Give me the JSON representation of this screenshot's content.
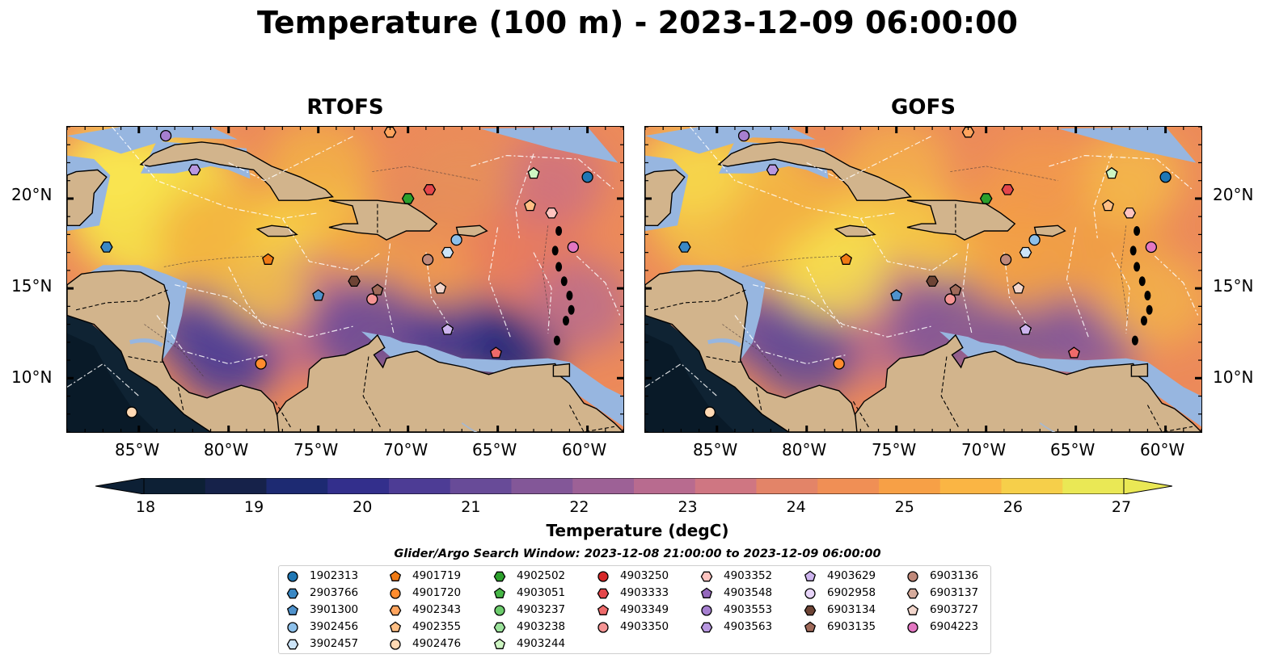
{
  "title": "Temperature (100 m) - 2023-12-09 06:00:00",
  "panels": [
    {
      "title": "RTOFS"
    },
    {
      "title": "GOFS"
    }
  ],
  "lat_ticks": [
    "20°N",
    "15°N",
    "10°N"
  ],
  "lon_ticks": [
    "85°W",
    "80°W",
    "75°W",
    "70°W",
    "65°W",
    "60°W"
  ],
  "colorbar": {
    "label": "Temperature (degC)",
    "ticks": [
      "18",
      "19",
      "20",
      "21",
      "22",
      "23",
      "24",
      "25",
      "26",
      "27"
    ],
    "range": [
      18,
      27
    ],
    "colors": [
      "#0d2035",
      "#16224a",
      "#1d2a72",
      "#332f8c",
      "#4d3c95",
      "#684b98",
      "#835798",
      "#9d6196",
      "#b86b8f",
      "#cf7682",
      "#e38468",
      "#f08f55",
      "#f7a046",
      "#fab544",
      "#f6cf4a",
      "#eae855"
    ]
  },
  "legend": {
    "title": "Glider/Argo Search Window: 2023-12-08 21:00:00 to 2023-12-09 06:00:00",
    "columns": [
      [
        {
          "id": "1902313",
          "shape": "circle",
          "color": "#1f77b4"
        },
        {
          "id": "2903766",
          "shape": "hexagon",
          "color": "#3a88c4"
        },
        {
          "id": "3901300",
          "shape": "pentagon",
          "color": "#4f92cc"
        },
        {
          "id": "3902456",
          "shape": "circle",
          "color": "#8dc0ea"
        },
        {
          "id": "3902457",
          "shape": "hexagon",
          "color": "#cce4f8"
        }
      ],
      [
        {
          "id": "4901719",
          "shape": "pentagon",
          "color": "#f07a14"
        },
        {
          "id": "4901720",
          "shape": "circle",
          "color": "#ff8c2e"
        },
        {
          "id": "4902343",
          "shape": "hexagon",
          "color": "#ffa45e"
        },
        {
          "id": "4902355",
          "shape": "pentagon",
          "color": "#ffbf85"
        },
        {
          "id": "4902476",
          "shape": "circle",
          "color": "#ffd9b4"
        }
      ],
      [
        {
          "id": "4902502",
          "shape": "hexagon",
          "color": "#2ca02c"
        },
        {
          "id": "4903051",
          "shape": "pentagon",
          "color": "#46b646"
        },
        {
          "id": "4903237",
          "shape": "circle",
          "color": "#6ccc6c"
        },
        {
          "id": "4903238",
          "shape": "hexagon",
          "color": "#9be29b"
        },
        {
          "id": "4903244",
          "shape": "pentagon",
          "color": "#cdf5c2"
        }
      ],
      [
        {
          "id": "4903250",
          "shape": "circle",
          "color": "#d62728"
        },
        {
          "id": "4903333",
          "shape": "hexagon",
          "color": "#e4464a"
        },
        {
          "id": "4903349",
          "shape": "pentagon",
          "color": "#ee6a6a"
        },
        {
          "id": "4903350",
          "shape": "circle",
          "color": "#f59494"
        }
      ],
      [
        {
          "id": "4903352",
          "shape": "hexagon",
          "color": "#ffc4c0"
        },
        {
          "id": "4903548",
          "shape": "pentagon",
          "color": "#9467bd"
        },
        {
          "id": "4903553",
          "shape": "circle",
          "color": "#a67fd0"
        },
        {
          "id": "4903563",
          "shape": "hexagon",
          "color": "#b897e0"
        }
      ],
      [
        {
          "id": "4903629",
          "shape": "pentagon",
          "color": "#cdb4ee"
        },
        {
          "id": "6902958",
          "shape": "circle",
          "color": "#e8d5fa"
        },
        {
          "id": "6903134",
          "shape": "hexagon",
          "color": "#6e4435"
        },
        {
          "id": "6903135",
          "shape": "pentagon",
          "color": "#a06a5a"
        }
      ],
      [
        {
          "id": "6903136",
          "shape": "circle",
          "color": "#c0897a"
        },
        {
          "id": "6903137",
          "shape": "hexagon",
          "color": "#d6ab9c"
        },
        {
          "id": "6903727",
          "shape": "pentagon",
          "color": "#f2d6cc"
        },
        {
          "id": "6904223",
          "shape": "circle",
          "color": "#e377c2"
        }
      ]
    ]
  },
  "map": {
    "lon_range": [
      -89,
      -58
    ],
    "lat_range": [
      7,
      24
    ],
    "land_color": "#d2b48c",
    "shelf_color": "#97b6e0",
    "floats": [
      {
        "id": "1902313",
        "lon": -60.0,
        "lat": 21.2
      },
      {
        "id": "2903766",
        "lon": -86.8,
        "lat": 17.3
      },
      {
        "id": "3901300",
        "lon": -75.0,
        "lat": 14.6
      },
      {
        "id": "3902456",
        "lon": -67.3,
        "lat": 17.7
      },
      {
        "id": "3902457",
        "lon": -67.8,
        "lat": 17.0
      },
      {
        "id": "4901719",
        "lon": -77.8,
        "lat": 16.6
      },
      {
        "id": "4901720",
        "lon": -78.2,
        "lat": 10.8
      },
      {
        "id": "4902355",
        "lon": -63.2,
        "lat": 19.6
      },
      {
        "id": "4902476",
        "lon": -85.4,
        "lat": 8.1
      },
      {
        "id": "4902502",
        "lon": -70.0,
        "lat": 20.0
      },
      {
        "id": "4903244",
        "lon": -63.0,
        "lat": 21.4
      },
      {
        "id": "4903333",
        "lon": -68.8,
        "lat": 20.5
      },
      {
        "id": "4903349",
        "lon": -65.1,
        "lat": 11.4
      },
      {
        "id": "4903350",
        "lon": -72.0,
        "lat": 14.4
      },
      {
        "id": "4903352",
        "lon": -62.0,
        "lat": 19.2
      },
      {
        "id": "4903553",
        "lon": -83.5,
        "lat": 23.5
      },
      {
        "id": "4903563",
        "lon": -81.9,
        "lat": 21.6
      },
      {
        "id": "4903629",
        "lon": -67.8,
        "lat": 12.7
      },
      {
        "id": "6903134",
        "lon": -73.0,
        "lat": 15.4
      },
      {
        "id": "6903135",
        "lon": -71.7,
        "lat": 14.9
      },
      {
        "id": "6903136",
        "lon": -68.9,
        "lat": 16.6
      },
      {
        "id": "6903727",
        "lon": -68.2,
        "lat": 15.0
      },
      {
        "id": "4902343",
        "lon": -71.0,
        "lat": 23.7
      },
      {
        "id": "6904223",
        "lon": -60.8,
        "lat": 17.3
      }
    ]
  }
}
